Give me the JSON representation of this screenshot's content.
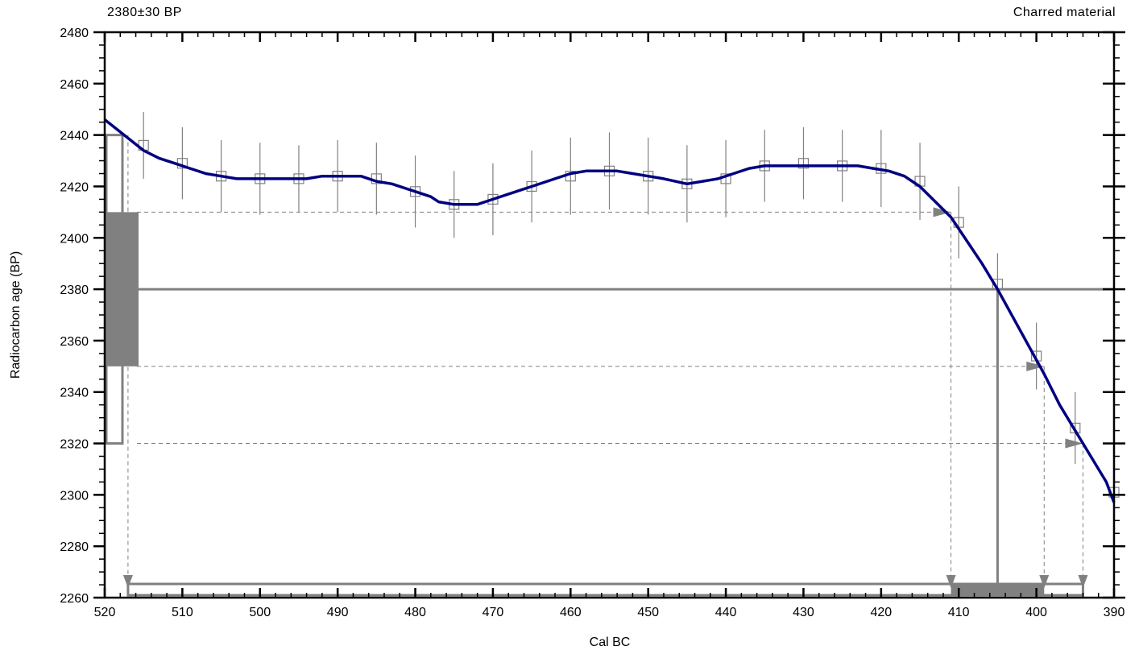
{
  "header": {
    "left_label": "2380±30 BP",
    "right_label": "Charred material"
  },
  "colors": {
    "curve": "#000080",
    "gray": "#808080",
    "axis": "#000000"
  },
  "chart_data": {
    "type": "line",
    "title": "",
    "xlabel": "Cal BC",
    "ylabel": "Radiocarbon age (BP)",
    "xlim": [
      520,
      390
    ],
    "ylim": [
      2260,
      2480
    ],
    "x_ticks": [
      520,
      510,
      500,
      490,
      480,
      470,
      460,
      450,
      440,
      430,
      420,
      410,
      400,
      390
    ],
    "y_ticks": [
      2260,
      2280,
      2300,
      2320,
      2340,
      2360,
      2380,
      2400,
      2420,
      2440,
      2460,
      2480
    ],
    "grid": false,
    "calibration_curve": {
      "x": [
        520,
        517.5,
        515,
        513,
        511,
        509,
        507,
        505,
        503,
        500,
        497,
        494,
        492,
        490,
        487,
        485,
        483,
        480,
        478,
        477,
        475,
        472,
        470,
        467,
        465,
        462,
        460,
        458,
        456,
        454,
        452,
        450,
        448,
        445,
        443,
        441,
        439,
        437,
        435,
        433,
        431,
        429,
        427,
        425,
        423,
        421,
        419,
        417,
        415,
        413,
        411,
        409,
        407,
        405,
        403,
        401,
        399,
        397,
        395,
        393,
        391,
        390
      ],
      "y": [
        2446,
        2440,
        2434,
        2431,
        2429,
        2427,
        2425,
        2424,
        2423,
        2423,
        2423,
        2423,
        2424,
        2424,
        2424,
        2422,
        2421,
        2418,
        2416,
        2414,
        2413,
        2413,
        2415,
        2418,
        2420,
        2423,
        2425,
        2426,
        2426,
        2426,
        2425,
        2424,
        2423,
        2421,
        2422,
        2423,
        2425,
        2427,
        2428,
        2428,
        2428,
        2428,
        2428,
        2428,
        2428,
        2427,
        2426,
        2424,
        2420,
        2414,
        2408,
        2399,
        2390,
        2380,
        2369,
        2358,
        2347,
        2335,
        2325,
        2315,
        2305,
        2297
      ]
    },
    "data_points": {
      "x": [
        515,
        510,
        505,
        500,
        495,
        490,
        485,
        480,
        475,
        470,
        465,
        460,
        455,
        450,
        445,
        440,
        435,
        430,
        425,
        420,
        415,
        410,
        405,
        400,
        395,
        390
      ],
      "y": [
        2436,
        2429,
        2424,
        2423,
        2423,
        2424,
        2423,
        2418,
        2413,
        2415,
        2420,
        2424,
        2426,
        2424,
        2421,
        2423,
        2428,
        2429,
        2428,
        2427,
        2422,
        2406,
        2382,
        2354,
        2326,
        2301
      ],
      "err": [
        13,
        14,
        14,
        14,
        13,
        14,
        14,
        14,
        13,
        14,
        14,
        15,
        15,
        15,
        15,
        15,
        14,
        14,
        14,
        15,
        15,
        14,
        12,
        13,
        14,
        14
      ]
    },
    "measurement": {
      "age": 2380,
      "sigma": 30,
      "one_sigma_box": [
        2350,
        2410
      ],
      "two_sigma_box": [
        2320,
        2440
      ]
    },
    "calibrated": {
      "intercept": 405,
      "one_sigma_range": [
        411,
        399
      ],
      "two_sigma_range": [
        517,
        394
      ],
      "projection_ages": [
        2440,
        2410,
        2350,
        2320
      ]
    }
  }
}
